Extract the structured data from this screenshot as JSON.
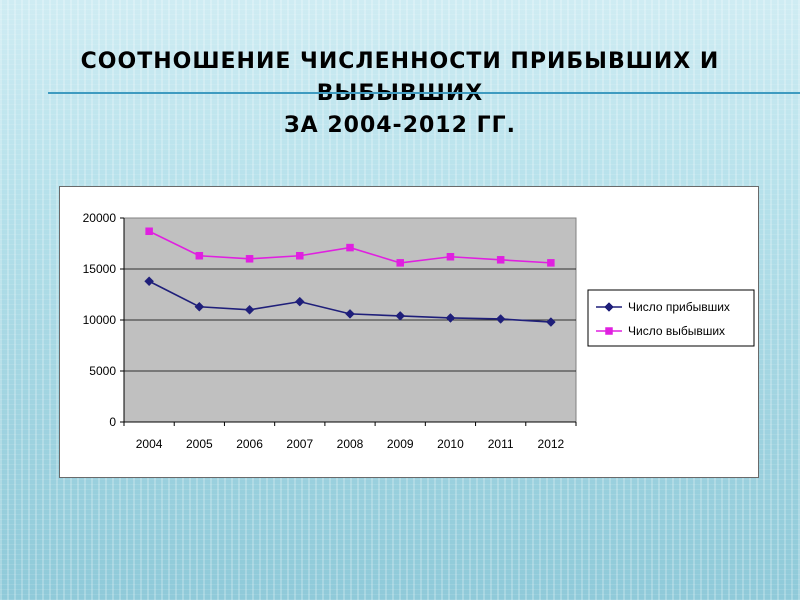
{
  "slide": {
    "title_lines": [
      "СООТНОШЕНИЕ ЧИСЛЕННОСТИ ПРИБЫВШИХ И",
      "ВЫБЫВШИХ",
      "ЗА 2004-2012 ГГ."
    ]
  },
  "colors": {
    "series_arrived": "#1f1f7a",
    "series_departed": "#e020e0",
    "plot_area": "#c0c0c0",
    "accent_rule": "#3f9bc0"
  },
  "chart_data": {
    "type": "line",
    "title": "",
    "xlabel": "",
    "ylabel": "",
    "categories": [
      "2004",
      "2005",
      "2006",
      "2007",
      "2008",
      "2009",
      "2010",
      "2011",
      "2012"
    ],
    "ylim": [
      0,
      20000
    ],
    "yticks": [
      "0",
      "5000",
      "10000",
      "15000",
      "20000"
    ],
    "grid": true,
    "legend_position": "right",
    "series": [
      {
        "name": "Число прибывших",
        "values": [
          13800,
          11300,
          11000,
          11800,
          10600,
          10400,
          10200,
          10100,
          9800
        ],
        "marker": "diamond",
        "color": "#1f1f7a"
      },
      {
        "name": "Число выбывших",
        "values": [
          18700,
          16300,
          16000,
          16300,
          17100,
          15600,
          16200,
          15900,
          15600
        ],
        "marker": "square",
        "color": "#e020e0"
      }
    ]
  }
}
